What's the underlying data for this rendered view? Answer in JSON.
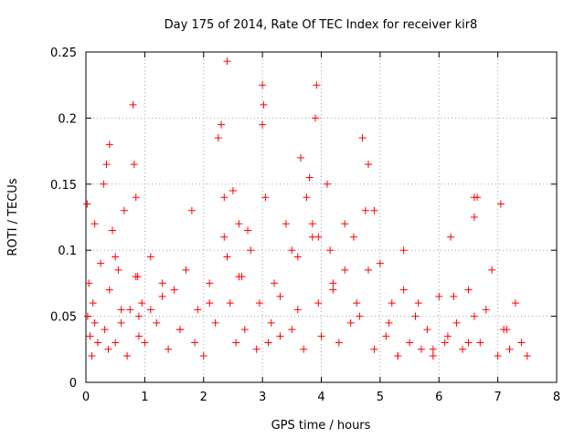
{
  "chart_data": {
    "type": "scatter",
    "title": "Day 175 of 2014, Rate Of TEC Index for receiver kir8",
    "xlabel": "GPS time / hours",
    "ylabel": "ROTI / TECUs",
    "xlim": [
      0,
      8
    ],
    "ylim": [
      0,
      0.25
    ],
    "x_ticks": [
      "0",
      "1",
      "2",
      "3",
      "4",
      "5",
      "6",
      "7",
      "8"
    ],
    "y_ticks": [
      "0",
      "0.05",
      "0.1",
      "0.15",
      "0.2",
      "0.25"
    ],
    "grid": true,
    "marker": "+",
    "color": "#ff0000",
    "series": [
      {
        "name": "ROTI kir8",
        "x": [
          0.02,
          0.03,
          0.05,
          0.07,
          0.1,
          0.12,
          0.15,
          0.2,
          0.25,
          0.3,
          0.32,
          0.35,
          0.38,
          0.4,
          0.45,
          0.5,
          0.55,
          0.6,
          0.65,
          0.7,
          0.75,
          0.8,
          0.82,
          0.85,
          0.88,
          0.9,
          0.95,
          1.0,
          1.1,
          1.2,
          1.3,
          1.4,
          1.5,
          1.6,
          1.7,
          1.8,
          1.85,
          1.9,
          2.0,
          2.1,
          2.2,
          2.25,
          2.3,
          2.35,
          2.4,
          2.45,
          2.5,
          2.55,
          2.6,
          2.65,
          2.7,
          2.8,
          2.9,
          2.95,
          3.0,
          3.02,
          3.05,
          3.1,
          3.2,
          3.3,
          3.4,
          3.5,
          3.6,
          3.65,
          3.7,
          3.8,
          3.85,
          3.9,
          3.92,
          3.95,
          4.0,
          4.1,
          4.2,
          4.3,
          4.4,
          4.5,
          4.55,
          4.6,
          4.7,
          4.75,
          4.8,
          4.9,
          5.0,
          5.1,
          5.2,
          5.3,
          5.4,
          5.5,
          5.6,
          5.7,
          5.8,
          5.9,
          6.0,
          6.1,
          6.2,
          6.3,
          6.4,
          6.5,
          6.6,
          6.65,
          6.7,
          6.8,
          6.9,
          7.0,
          7.1,
          7.2,
          7.3,
          7.4,
          7.5,
          0.15,
          0.5,
          1.1,
          1.6,
          2.1,
          2.6,
          3.15,
          3.6,
          4.15,
          4.65,
          5.15,
          5.65,
          6.15,
          6.6,
          7.15,
          0.6,
          1.3,
          2.4,
          3.3,
          3.75,
          4.4,
          5.3,
          5.9,
          6.5,
          7.05,
          0.85,
          2.35,
          3.0,
          3.95,
          4.8,
          6.6,
          0.4,
          0.9,
          2.75,
          3.5,
          3.85,
          4.2,
          4.9,
          5.4,
          6.25
        ],
        "y": [
          0.135,
          0.05,
          0.075,
          0.035,
          0.02,
          0.06,
          0.12,
          0.03,
          0.09,
          0.15,
          0.04,
          0.165,
          0.025,
          0.07,
          0.115,
          0.03,
          0.085,
          0.045,
          0.13,
          0.02,
          0.055,
          0.21,
          0.165,
          0.14,
          0.08,
          0.035,
          0.06,
          0.03,
          0.095,
          0.045,
          0.065,
          0.025,
          0.07,
          0.04,
          0.085,
          0.13,
          0.03,
          0.055,
          0.02,
          0.075,
          0.045,
          0.185,
          0.195,
          0.11,
          0.243,
          0.06,
          0.145,
          0.03,
          0.12,
          0.08,
          0.04,
          0.1,
          0.025,
          0.06,
          0.225,
          0.21,
          0.14,
          0.03,
          0.075,
          0.035,
          0.12,
          0.04,
          0.095,
          0.17,
          0.025,
          0.155,
          0.11,
          0.2,
          0.225,
          0.06,
          0.035,
          0.15,
          0.075,
          0.03,
          0.12,
          0.045,
          0.11,
          0.06,
          0.185,
          0.13,
          0.165,
          0.025,
          0.09,
          0.035,
          0.06,
          0.02,
          0.07,
          0.03,
          0.05,
          0.025,
          0.04,
          0.02,
          0.065,
          0.03,
          0.11,
          0.045,
          0.025,
          0.07,
          0.125,
          0.14,
          0.03,
          0.055,
          0.085,
          0.02,
          0.04,
          0.025,
          0.06,
          0.03,
          0.02,
          0.045,
          0.095,
          0.055,
          0.04,
          0.06,
          0.08,
          0.045,
          0.055,
          0.1,
          0.05,
          0.045,
          0.06,
          0.035,
          0.05,
          0.04,
          0.055,
          0.075,
          0.095,
          0.065,
          0.14,
          0.085,
          0.02,
          0.025,
          0.03,
          0.135,
          0.08,
          0.14,
          0.195,
          0.11,
          0.085,
          0.14,
          0.18,
          0.05,
          0.115,
          0.1,
          0.12,
          0.07,
          0.13,
          0.1,
          0.065
        ]
      }
    ]
  }
}
